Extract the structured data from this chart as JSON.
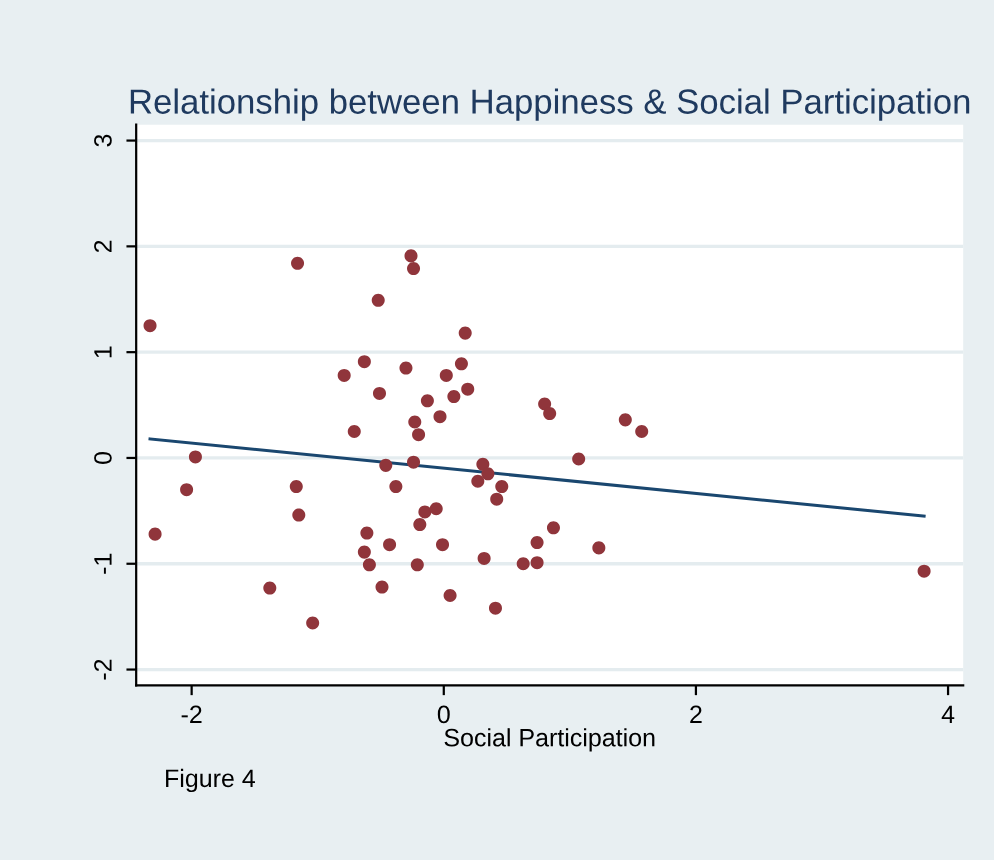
{
  "chart_data": {
    "type": "scatter",
    "title": "Relationship between Happiness & Social Participation",
    "xlabel": "Social Participation",
    "annotations": [
      "Figure 4"
    ],
    "xlim": [
      -2.44,
      4.12
    ],
    "ylim": [
      -2.15,
      3.15
    ],
    "xticks": [
      -2,
      0,
      2,
      4
    ],
    "yticks": [
      {
        "value": -2,
        "label": "-2"
      },
      {
        "value": -1,
        "label": "-1"
      },
      0,
      1,
      2,
      3
    ],
    "grid": "y",
    "series": [
      {
        "marker": "circle",
        "color": "#90353b",
        "x": [
          -2.33,
          -2.29,
          -2.04,
          -1.97,
          -1.16,
          -1.17,
          -1.15,
          -1.38,
          -1.04,
          -0.52,
          -0.26,
          -0.24,
          -0.63,
          -0.79,
          -0.71,
          -0.51,
          -0.3,
          -0.23,
          -0.2,
          -0.24,
          -0.46,
          -0.38,
          -0.61,
          -0.63,
          -0.59,
          -0.43,
          -0.49,
          -0.21,
          -0.19,
          -0.15,
          -0.06,
          -0.01,
          0.05,
          0.02,
          0.08,
          -0.03,
          -0.13,
          0.14,
          0.17,
          0.19,
          0.27,
          0.31,
          0.35,
          0.46,
          0.42,
          0.32,
          0.41,
          0.63,
          0.74,
          0.74,
          0.8,
          0.84,
          0.87,
          1.07,
          1.44,
          1.57,
          1.23,
          3.81
        ],
        "values": [
          1.25,
          -0.72,
          -0.3,
          0.01,
          1.84,
          -0.27,
          -0.54,
          -1.23,
          -1.56,
          1.49,
          1.91,
          1.79,
          0.91,
          0.78,
          0.25,
          0.61,
          0.85,
          0.34,
          0.22,
          -0.04,
          -0.07,
          -0.27,
          -0.71,
          -0.89,
          -1.01,
          -0.82,
          -1.22,
          -1.01,
          -0.63,
          -0.51,
          -0.48,
          -0.82,
          -1.3,
          0.78,
          0.58,
          0.39,
          0.54,
          0.89,
          1.18,
          0.65,
          -0.22,
          -0.06,
          -0.15,
          -0.27,
          -0.39,
          -0.95,
          -1.42,
          -1.0,
          -0.8,
          -0.99,
          0.51,
          0.42,
          -0.66,
          -0.01,
          0.36,
          0.25,
          -0.85,
          -1.07
        ]
      },
      {
        "type": "line",
        "color": "#1a476f",
        "x": [
          -2.33,
          3.81
        ],
        "values": [
          0.18,
          -0.55
        ]
      }
    ]
  }
}
